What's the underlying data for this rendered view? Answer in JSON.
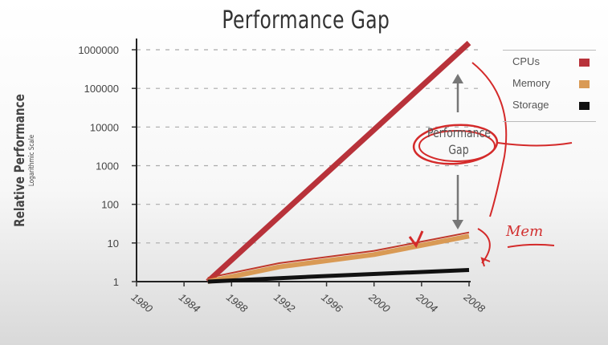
{
  "chart_data": {
    "type": "line",
    "title": "Performance Gap",
    "ylabel": "Relative Performance",
    "ylabel_sub": "Logarithmic Scale",
    "yscale": "log",
    "ylim": [
      1,
      1000000
    ],
    "xlim": [
      1980,
      2008
    ],
    "x_ticks": [
      "1980",
      "1984",
      "1988",
      "1992",
      "1996",
      "2000",
      "2004",
      "2008"
    ],
    "y_ticks": [
      "1000000",
      "100000",
      "10000",
      "1000",
      "100",
      "10",
      "1"
    ],
    "grid": "horizontal dashed",
    "legend_position": "right",
    "series": [
      {
        "name": "CPUs",
        "color": "#b8323a",
        "x": [
          1986,
          2008
        ],
        "y": [
          1,
          1500000
        ]
      },
      {
        "name": "Memory",
        "color": "#d99a55",
        "x": [
          1986,
          1992,
          2000,
          2008
        ],
        "y": [
          1,
          2.4,
          5,
          15
        ]
      },
      {
        "name": "Storage",
        "color": "#111111",
        "x": [
          1986,
          1996,
          2008
        ],
        "y": [
          1,
          1.4,
          2
        ]
      }
    ],
    "annotations": [
      {
        "text": "Performance Gap"
      }
    ]
  },
  "annotation": {
    "gap_line1": "Performance",
    "gap_line2": "Gap",
    "handwritten": "Mem"
  }
}
